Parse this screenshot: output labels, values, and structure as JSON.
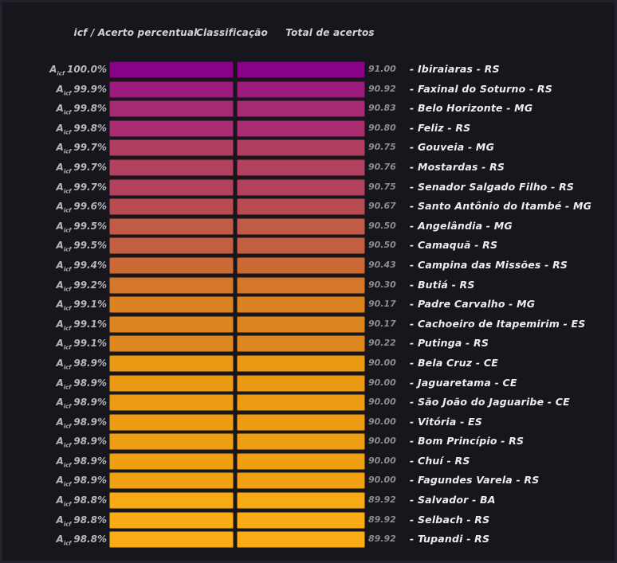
{
  "labels": {
    "symbol": "A",
    "symbol_sub": "icf"
  },
  "chart_data": {
    "type": "heatmap",
    "title": "",
    "columns": [
      "icf / Acerto percentual",
      "Classificação",
      "Total de acertos"
    ],
    "legend_position": "none",
    "grid": false,
    "color_scale": [
      "#8a0189",
      "#faac17"
    ],
    "value_range_pct": [
      "98.8%",
      "100.0%"
    ],
    "value_range_score": [
      89.92,
      91.0
    ],
    "rows": [
      {
        "pct": "100.0%",
        "score": "91.00",
        "city": "- Ibiraiaras - RS",
        "color": "#8a0189"
      },
      {
        "pct": "99.9%",
        "score": "90.92",
        "city": "- Faxinal do Soturno - RS",
        "color": "#9c1a7d"
      },
      {
        "pct": "99.8%",
        "score": "90.83",
        "city": "- Belo Horizonte - MG",
        "color": "#a52a72"
      },
      {
        "pct": "99.8%",
        "score": "90.80",
        "city": "- Feliz - RS",
        "color": "#a72d70"
      },
      {
        "pct": "99.7%",
        "score": "90.75",
        "city": "- Gouveia - MG",
        "color": "#b13e61"
      },
      {
        "pct": "99.7%",
        "score": "90.76",
        "city": "- Mostardas - RS",
        "color": "#b2405f"
      },
      {
        "pct": "99.7%",
        "score": "90.75",
        "city": "- Senador Salgado Filho - RS",
        "color": "#b2415e"
      },
      {
        "pct": "99.6%",
        "score": "90.67",
        "city": "- Santo Antônio do Itambé - MG",
        "color": "#b94c53"
      },
      {
        "pct": "99.5%",
        "score": "90.50",
        "city": "- Angelândia - MG",
        "color": "#c15a46"
      },
      {
        "pct": "99.5%",
        "score": "90.50",
        "city": "- Camaquã - RS",
        "color": "#c25e42"
      },
      {
        "pct": "99.4%",
        "score": "90.43",
        "city": "- Campina das Missões - RS",
        "color": "#cb6a35"
      },
      {
        "pct": "99.2%",
        "score": "90.30",
        "city": "- Butiá - RS",
        "color": "#d47729"
      },
      {
        "pct": "99.1%",
        "score": "90.17",
        "city": "- Padre Carvalho - MG",
        "color": "#dc8321"
      },
      {
        "pct": "99.1%",
        "score": "90.17",
        "city": "- Cachoeiro de Itapemirim - ES",
        "color": "#dd8520"
      },
      {
        "pct": "99.1%",
        "score": "90.22",
        "city": "- Putinga - RS",
        "color": "#de861f"
      },
      {
        "pct": "98.9%",
        "score": "90.00",
        "city": "- Bela Cruz - CE",
        "color": "#ea9915"
      },
      {
        "pct": "98.9%",
        "score": "90.00",
        "city": "- Jaguaretama - CE",
        "color": "#eb9a14"
      },
      {
        "pct": "98.9%",
        "score": "90.00",
        "city": "- São João do Jaguaribe - CE",
        "color": "#ec9b14"
      },
      {
        "pct": "98.9%",
        "score": "90.00",
        "city": "- Vitória - ES",
        "color": "#ed9d13"
      },
      {
        "pct": "98.9%",
        "score": "90.00",
        "city": "- Bom Princípio - RS",
        "color": "#ee9e12"
      },
      {
        "pct": "98.9%",
        "score": "90.00",
        "city": "- Chuí - RS",
        "color": "#ef9f12"
      },
      {
        "pct": "98.9%",
        "score": "90.00",
        "city": "- Fagundes Varela - RS",
        "color": "#f0a011"
      },
      {
        "pct": "98.8%",
        "score": "89.92",
        "city": "- Salvador - BA",
        "color": "#f8aa16"
      },
      {
        "pct": "98.8%",
        "score": "89.92",
        "city": "- Selbach - RS",
        "color": "#f9ab16"
      },
      {
        "pct": "98.8%",
        "score": "89.92",
        "city": "- Tupandi - RS",
        "color": "#faac17"
      }
    ]
  }
}
